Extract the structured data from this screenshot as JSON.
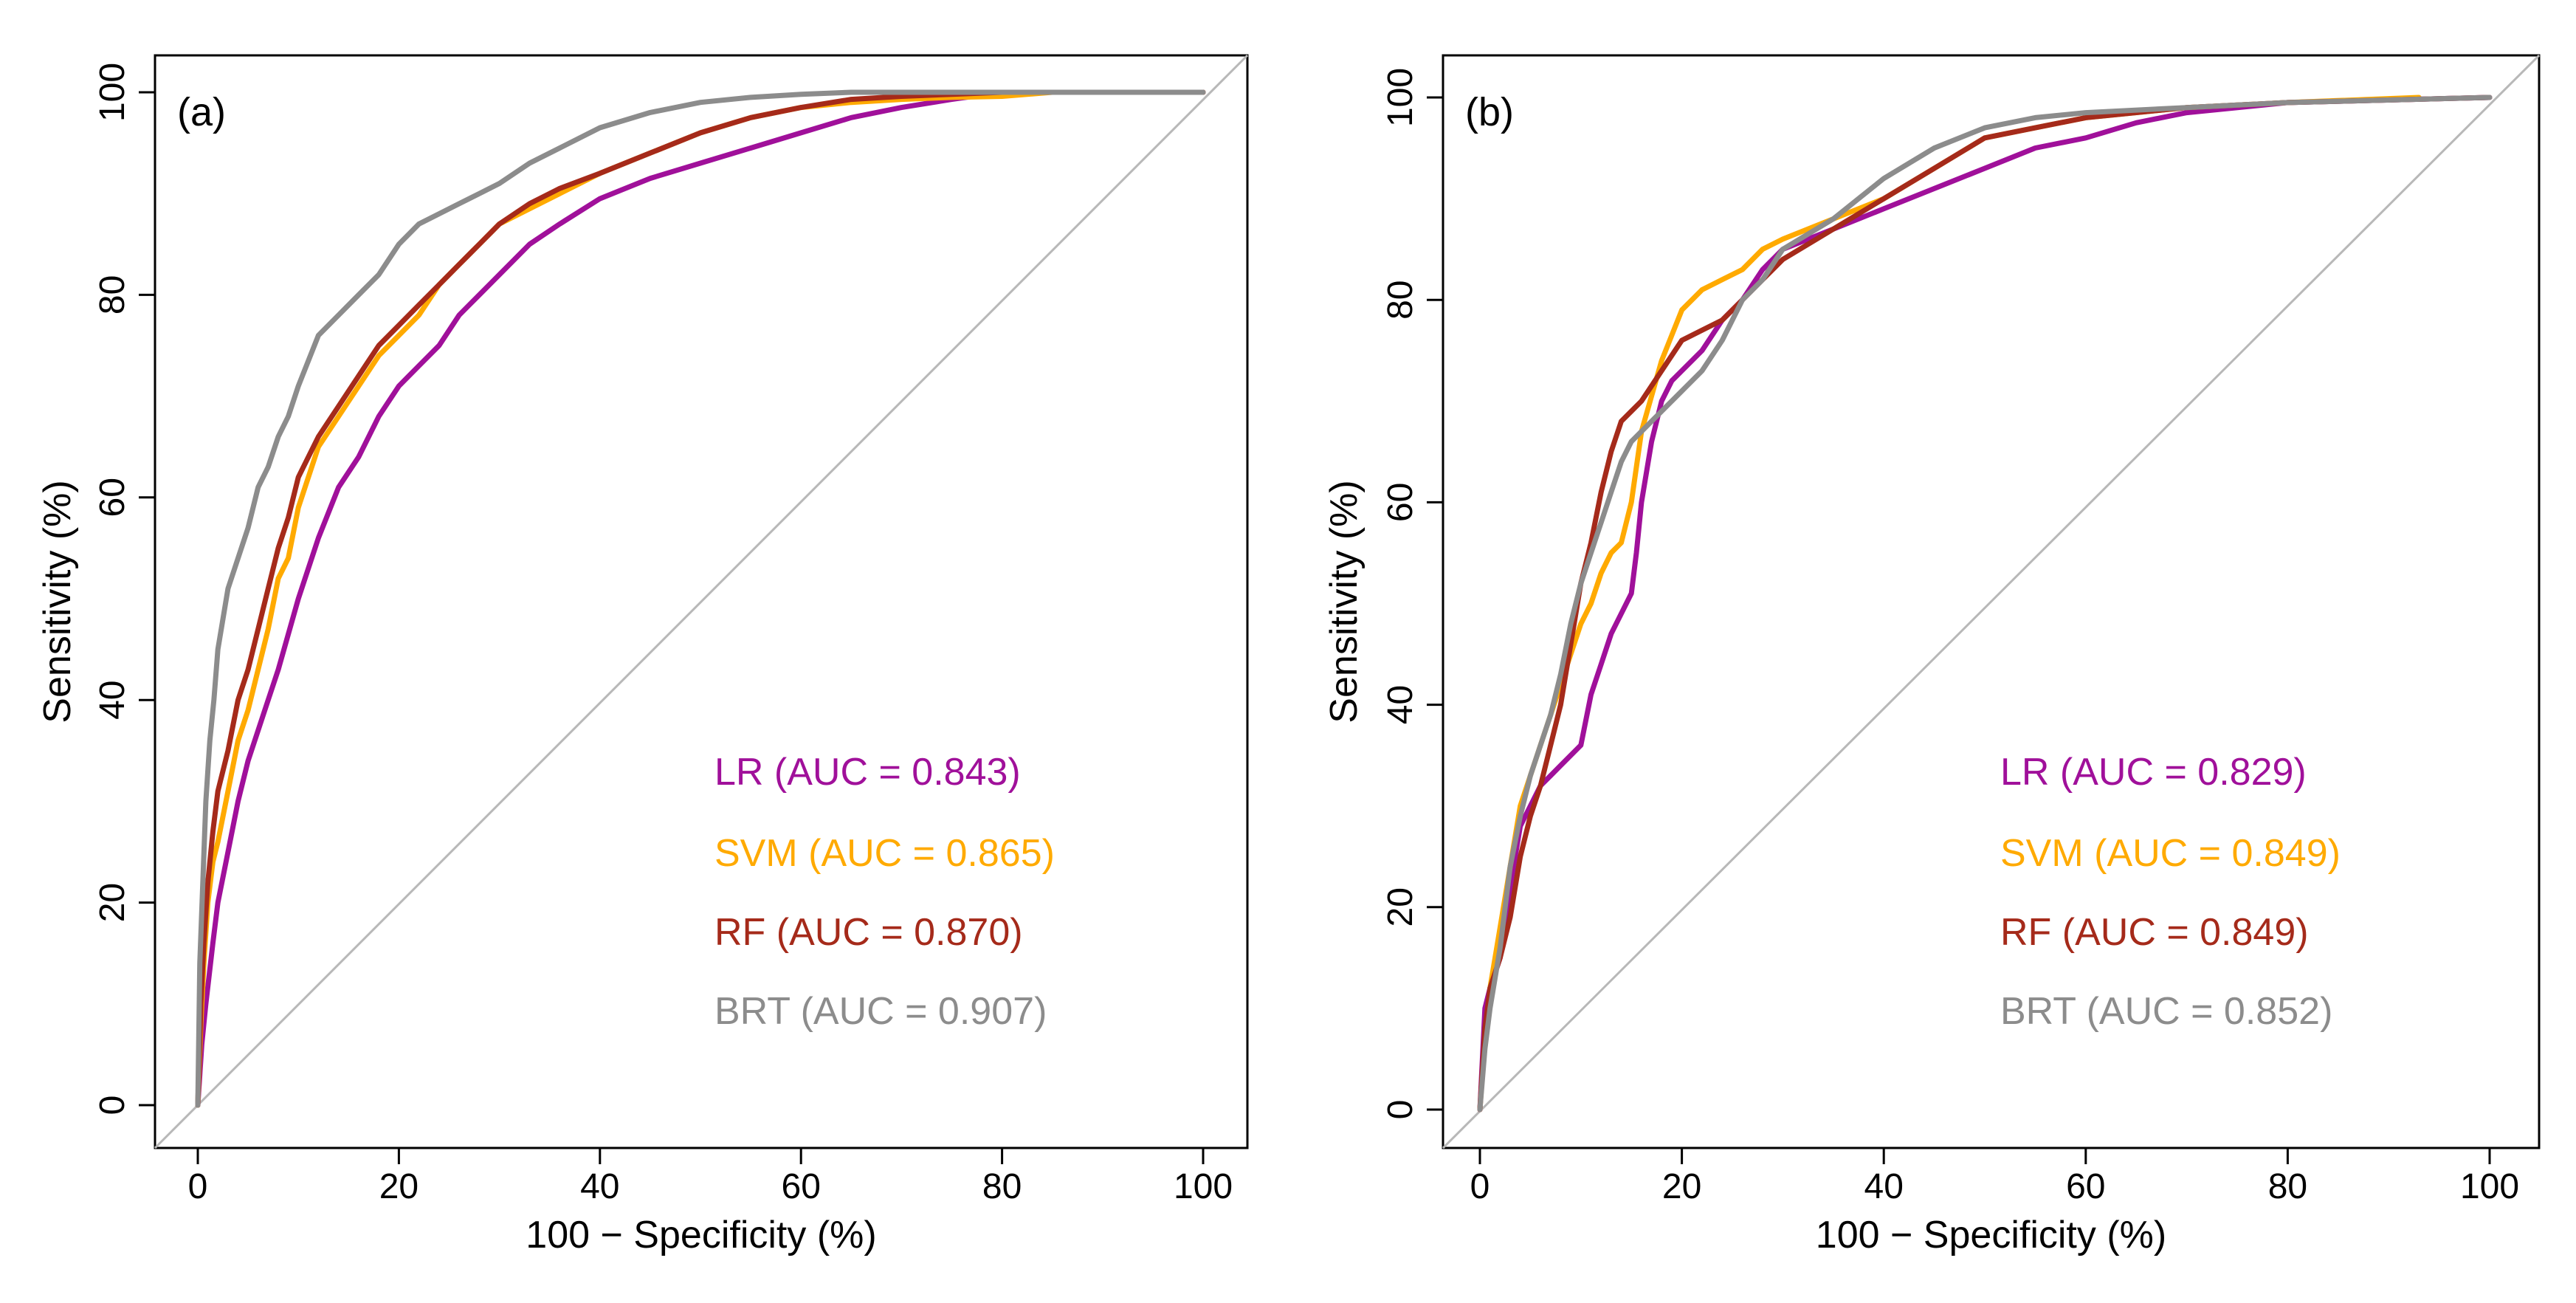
{
  "chart_data": [
    {
      "type": "line",
      "panel_label": "(a)",
      "xlabel": "100 − Specificity (%)",
      "ylabel": "Sensitivity (%)",
      "xlim": [
        0,
        100
      ],
      "ylim": [
        0,
        100
      ],
      "xticks": [
        0,
        20,
        40,
        60,
        80,
        100
      ],
      "yticks": [
        0,
        20,
        40,
        60,
        80,
        100
      ],
      "reference_line": true,
      "legend_position": "bottom-right",
      "series": [
        {
          "key": "lr",
          "name": "LR (AUC = 0.843)",
          "color": "#a0109a",
          "x": [
            0,
            0.4,
            0.8,
            1.5,
            2,
            3,
            4,
            5,
            6,
            7,
            8,
            10,
            12,
            14,
            16,
            18,
            20,
            22,
            24,
            26,
            28,
            30,
            33,
            36,
            40,
            45,
            50,
            55,
            60,
            65,
            70,
            75,
            80,
            100
          ],
          "y": [
            0,
            6,
            10,
            16,
            20,
            25,
            30,
            34,
            37,
            40,
            43,
            50,
            56,
            61,
            64,
            68,
            71,
            73,
            75,
            78,
            80,
            82,
            85,
            87,
            89.5,
            91.5,
            93,
            94.5,
            96,
            97.5,
            98.5,
            99.3,
            100,
            100
          ]
        },
        {
          "key": "svm",
          "name": "SVM (AUC = 0.865)",
          "color": "#ffaa00",
          "x": [
            0,
            0.3,
            0.6,
            1,
            1.5,
            2,
            3,
            4,
            5,
            6,
            7,
            8,
            9,
            10,
            12,
            14,
            16,
            18,
            20,
            22,
            24,
            26,
            28,
            30,
            33,
            36,
            40,
            45,
            50,
            55,
            60,
            65,
            70,
            75,
            80,
            85,
            100
          ],
          "y": [
            0,
            8,
            14,
            20,
            24,
            26,
            31,
            36,
            39,
            43,
            47,
            52,
            54,
            59,
            65,
            68,
            71,
            74,
            76,
            78,
            81,
            83,
            85,
            87,
            88.5,
            90,
            92,
            94,
            96,
            97.5,
            98.5,
            99,
            99.3,
            99.5,
            99.6,
            100,
            100
          ]
        },
        {
          "key": "rf",
          "name": "RF (AUC = 0.870)",
          "color": "#a52a1a",
          "x": [
            0,
            0.3,
            0.6,
            1,
            1.5,
            2,
            3,
            4,
            5,
            6,
            7,
            8,
            9,
            10,
            12,
            14,
            16,
            18,
            20,
            22,
            24,
            26,
            28,
            30,
            33,
            36,
            40,
            45,
            50,
            55,
            60,
            65,
            70,
            75,
            80,
            85,
            100
          ],
          "y": [
            0,
            10,
            16,
            22,
            27,
            31,
            35,
            40,
            43,
            47,
            51,
            55,
            58,
            62,
            66,
            69,
            72,
            75,
            77,
            79,
            81,
            83,
            85,
            87,
            89,
            90.5,
            92,
            94,
            96,
            97.5,
            98.5,
            99.3,
            99.6,
            99.8,
            100,
            100,
            100
          ]
        },
        {
          "key": "brt",
          "name": "BRT (AUC = 0.907)",
          "color": "#8c8c8c",
          "x": [
            0,
            0.2,
            0.5,
            0.8,
            1.2,
            1.6,
            2,
            3,
            4,
            5,
            6,
            7,
            8,
            9,
            10,
            12,
            14,
            16,
            18,
            20,
            22,
            24,
            26,
            28,
            30,
            33,
            36,
            40,
            45,
            50,
            55,
            60,
            65,
            70,
            75,
            80,
            100
          ],
          "y": [
            0,
            14,
            22,
            30,
            36,
            40,
            45,
            51,
            54,
            57,
            61,
            63,
            66,
            68,
            71,
            76,
            78,
            80,
            82,
            85,
            87,
            88,
            89,
            90,
            91,
            93,
            94.5,
            96.5,
            98,
            99,
            99.5,
            99.8,
            100,
            100,
            100,
            100,
            100
          ]
        }
      ]
    },
    {
      "type": "line",
      "panel_label": "(b)",
      "xlabel": "100 − Specificity (%)",
      "ylabel": "Sensitivity (%)",
      "xlim": [
        0,
        100
      ],
      "ylim": [
        0,
        100
      ],
      "xticks": [
        0,
        20,
        40,
        60,
        80,
        100
      ],
      "yticks": [
        0,
        20,
        40,
        60,
        80,
        100
      ],
      "reference_line": true,
      "legend_position": "bottom-right",
      "series": [
        {
          "key": "lr",
          "name": "LR (AUC = 0.829)",
          "color": "#a0109a",
          "x": [
            0,
            0.5,
            1,
            2,
            3,
            4,
            5,
            6,
            7,
            8,
            9,
            10,
            11,
            12,
            13,
            14,
            15,
            15.5,
            16,
            17,
            18,
            19,
            20,
            22,
            24,
            26,
            28,
            30,
            35,
            40,
            45,
            50,
            55,
            60,
            65,
            70,
            80,
            100
          ],
          "y": [
            0,
            10,
            12,
            15,
            22,
            28,
            30,
            32,
            33,
            34,
            35,
            36,
            41,
            44,
            47,
            49,
            51,
            55,
            60,
            66,
            70,
            72,
            73,
            75,
            78,
            80,
            83,
            85,
            87,
            89,
            91,
            93,
            95,
            96,
            97.5,
            98.5,
            99.5,
            100
          ]
        },
        {
          "key": "svm",
          "name": "SVM (AUC = 0.849)",
          "color": "#ffaa00",
          "x": [
            0,
            0.5,
            1,
            2,
            3,
            4,
            5,
            6,
            7,
            8,
            9,
            10,
            11,
            12,
            13,
            14,
            15,
            16,
            18,
            20,
            22,
            24,
            26,
            28,
            30,
            35,
            40,
            45,
            50,
            55,
            60,
            70,
            80,
            93
          ],
          "y": [
            0,
            7,
            12,
            18,
            24,
            30,
            33,
            36,
            39,
            42,
            45,
            48,
            50,
            53,
            55,
            56,
            60,
            67,
            74,
            79,
            81,
            82,
            83,
            85,
            86,
            88,
            90,
            93,
            96,
            97,
            98,
            99,
            99.5,
            100
          ]
        },
        {
          "key": "rf",
          "name": "RF (AUC = 0.849)",
          "color": "#a52a1a",
          "x": [
            0,
            0.5,
            1,
            2,
            3,
            4,
            5,
            6,
            7,
            8,
            9,
            10,
            11,
            12,
            13,
            14,
            15,
            16,
            18,
            20,
            22,
            24,
            26,
            28,
            30,
            35,
            40,
            45,
            50,
            55,
            60,
            70,
            80,
            100
          ],
          "y": [
            0,
            8,
            12,
            15,
            19,
            25,
            29,
            32,
            36,
            40,
            46,
            52,
            56,
            61,
            65,
            68,
            69,
            70,
            73,
            76,
            77,
            78,
            80,
            82,
            84,
            87,
            90,
            93,
            96,
            97,
            98,
            99,
            99.5,
            100
          ]
        },
        {
          "key": "brt",
          "name": "BRT (AUC = 0.852)",
          "color": "#8c8c8c",
          "x": [
            0,
            0.5,
            1,
            2,
            3,
            4,
            5,
            6,
            7,
            8,
            9,
            10,
            11,
            12,
            13,
            14,
            15,
            16,
            18,
            20,
            22,
            24,
            26,
            28,
            30,
            35,
            40,
            45,
            50,
            55,
            60,
            70,
            80,
            100
          ],
          "y": [
            0,
            6,
            10,
            16,
            24,
            29,
            33,
            36,
            39,
            43,
            48,
            52,
            55,
            58,
            61,
            64,
            66,
            67,
            69,
            71,
            73,
            76,
            80,
            82,
            85,
            88,
            92,
            95,
            97,
            98,
            98.5,
            99,
            99.5,
            100
          ]
        }
      ]
    }
  ]
}
